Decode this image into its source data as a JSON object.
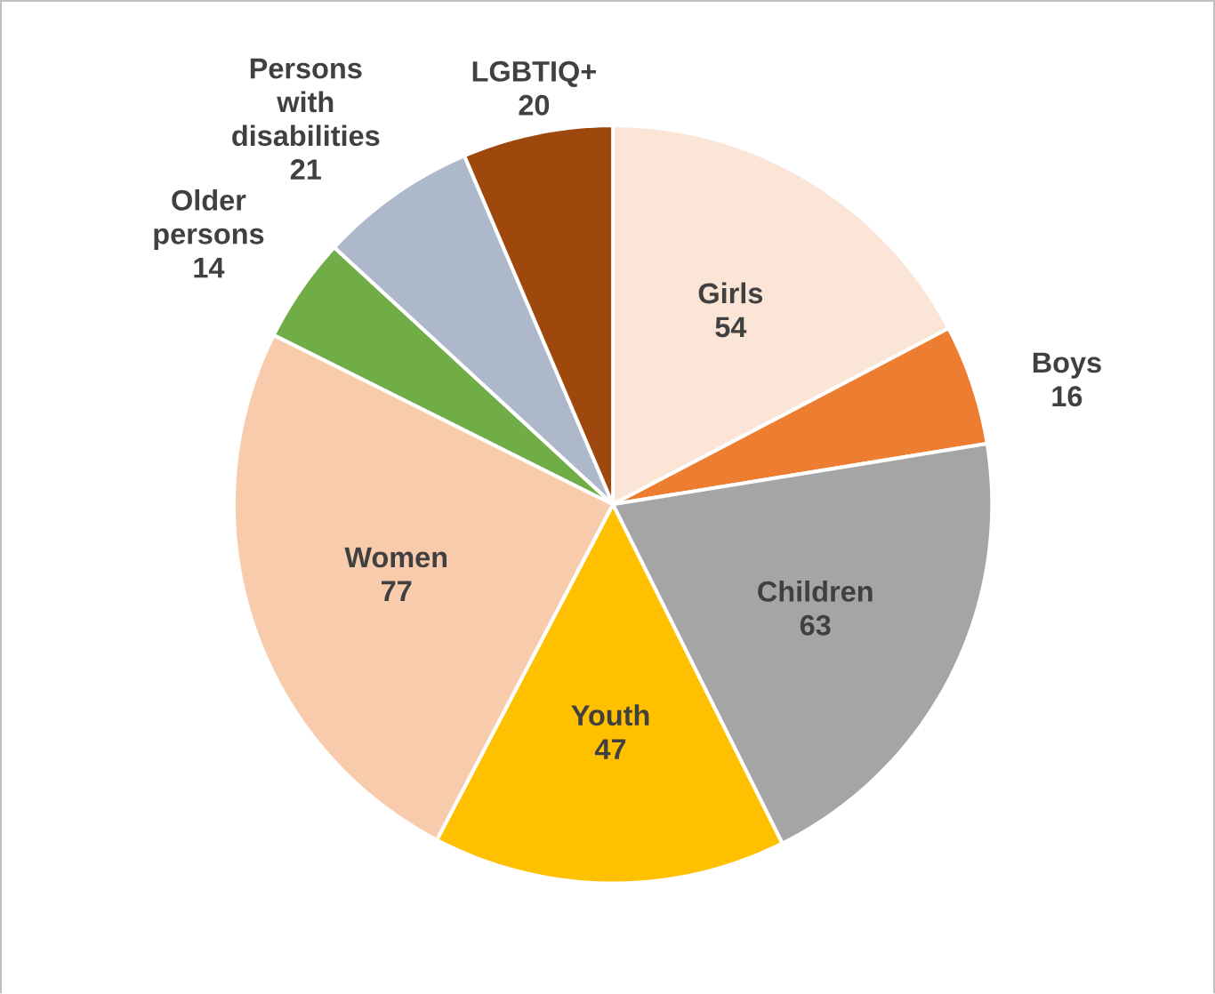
{
  "chart_data": {
    "type": "pie",
    "categories": [
      "Girls",
      "Boys",
      "Children",
      "Youth",
      "Women",
      "Older persons",
      "Persons with disabilities",
      "LGBTIQ+"
    ],
    "values": [
      54,
      16,
      63,
      47,
      77,
      14,
      21,
      20
    ],
    "colors": [
      "#fbe5d6",
      "#ed7d31",
      "#a5a5a5",
      "#ffc000",
      "#f8cbad",
      "#70ad47",
      "#adb9ca",
      "#9e480e"
    ],
    "data_labels": true
  }
}
